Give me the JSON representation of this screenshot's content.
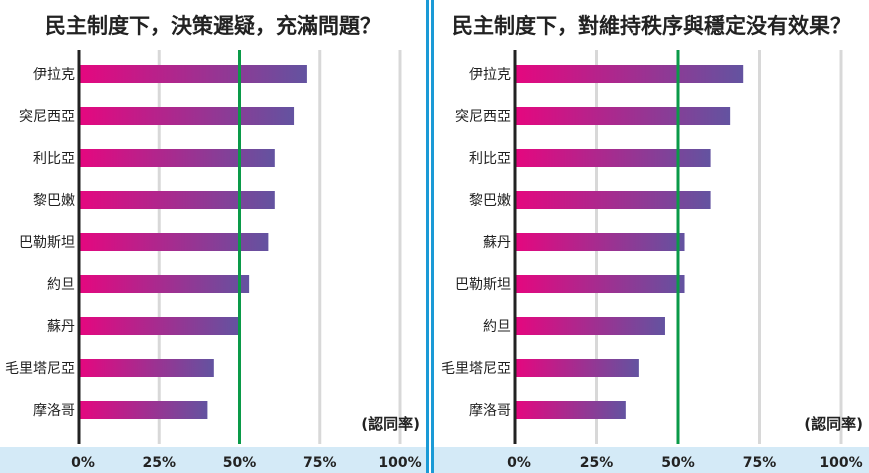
{
  "chart_data": [
    {
      "type": "bar",
      "orientation": "horizontal",
      "title": "民主制度下，決策遲疑，充滿問題？",
      "unit_label": "(認同率)",
      "categories": [
        "伊拉克",
        "突尼西亞",
        "利比亞",
        "黎巴嫩",
        "巴勒斯坦",
        "約旦",
        "蘇丹",
        "毛里塔尼亞",
        "摩洛哥"
      ],
      "values": [
        71,
        67,
        61,
        61,
        59,
        53,
        50,
        42,
        40
      ],
      "xlim": [
        0,
        100
      ],
      "ticks": [
        "0%",
        "25%",
        "50%",
        "75%",
        "100%"
      ],
      "reference_line": 50,
      "grid": true
    },
    {
      "type": "bar",
      "orientation": "horizontal",
      "title": "民主制度下，對維持秩序與穩定没有效果？",
      "unit_label": "(認同率)",
      "categories": [
        "伊拉克",
        "突尼西亞",
        "利比亞",
        "黎巴嫩",
        "蘇丹",
        "巴勒斯坦",
        "約旦",
        "毛里塔尼亞",
        "摩洛哥"
      ],
      "values": [
        70,
        66,
        60,
        60,
        52,
        52,
        46,
        38,
        34
      ],
      "xlim": [
        0,
        100
      ],
      "ticks": [
        "0%",
        "25%",
        "50%",
        "75%",
        "100%"
      ],
      "reference_line": 50,
      "grid": true
    }
  ],
  "colors": {
    "bar_start": "#e5077f",
    "bar_end": "#6353a0",
    "reference": "#0a9a48",
    "grid": "#d8d8d8",
    "axis_band": "#d4eaf7",
    "border": "#1a9ad6"
  }
}
